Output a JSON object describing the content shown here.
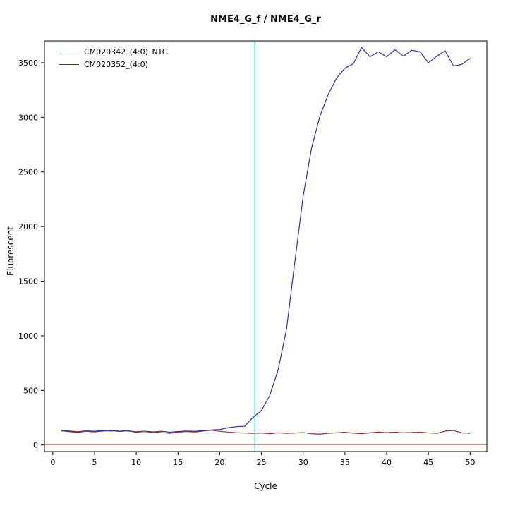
{
  "chart_data": {
    "type": "line",
    "title": "NME4_G_f / NME4_G_r",
    "xlabel": "Cycle",
    "ylabel": "Fluorescent",
    "xlim": [
      -1,
      52
    ],
    "ylim": [
      -60,
      3700
    ],
    "x_ticks": [
      0,
      5,
      10,
      15,
      20,
      25,
      30,
      35,
      40,
      45,
      50
    ],
    "y_ticks": [
      0,
      500,
      1000,
      1500,
      2000,
      2500,
      3000,
      3500
    ],
    "grid": false,
    "legend_position": "top-left",
    "ct_line_x": 24.2,
    "ct_line_color": "#00EEEE",
    "threshold_line_y": 5,
    "threshold_line_color": "#8B3030",
    "x": [
      1,
      2,
      3,
      4,
      5,
      6,
      7,
      8,
      9,
      10,
      11,
      12,
      13,
      14,
      15,
      16,
      17,
      18,
      19,
      20,
      21,
      22,
      23,
      24,
      25,
      26,
      27,
      28,
      29,
      30,
      31,
      32,
      33,
      34,
      35,
      36,
      37,
      38,
      39,
      40,
      41,
      42,
      43,
      44,
      45,
      46,
      47,
      48,
      49,
      50
    ],
    "series": [
      {
        "name": "CM020342_(4:0)_NTC",
        "color": "#8B3030",
        "values": [
          130,
          122,
          116,
          126,
          120,
          128,
          133,
          124,
          131,
          117,
          112,
          120,
          114,
          108,
          117,
          124,
          119,
          128,
          136,
          126,
          118,
          113,
          110,
          107,
          110,
          104,
          112,
          107,
          110,
          114,
          104,
          100,
          108,
          112,
          117,
          109,
          104,
          112,
          119,
          114,
          117,
          112,
          115,
          118,
          111,
          107,
          128,
          134,
          111,
          109
        ]
      },
      {
        "name": "CM020352_(4:0)",
        "color": "#333399",
        "values": [
          135,
          128,
          122,
          130,
          126,
          133,
          128,
          136,
          128,
          122,
          127,
          120,
          126,
          118,
          124,
          128,
          126,
          133,
          138,
          142,
          158,
          168,
          172,
          255,
          315,
          455,
          690,
          1060,
          1680,
          2280,
          2720,
          3010,
          3210,
          3360,
          3450,
          3490,
          3640,
          3555,
          3600,
          3555,
          3620,
          3560,
          3615,
          3600,
          3500,
          3560,
          3610,
          3470,
          3485,
          3540
        ]
      }
    ]
  }
}
